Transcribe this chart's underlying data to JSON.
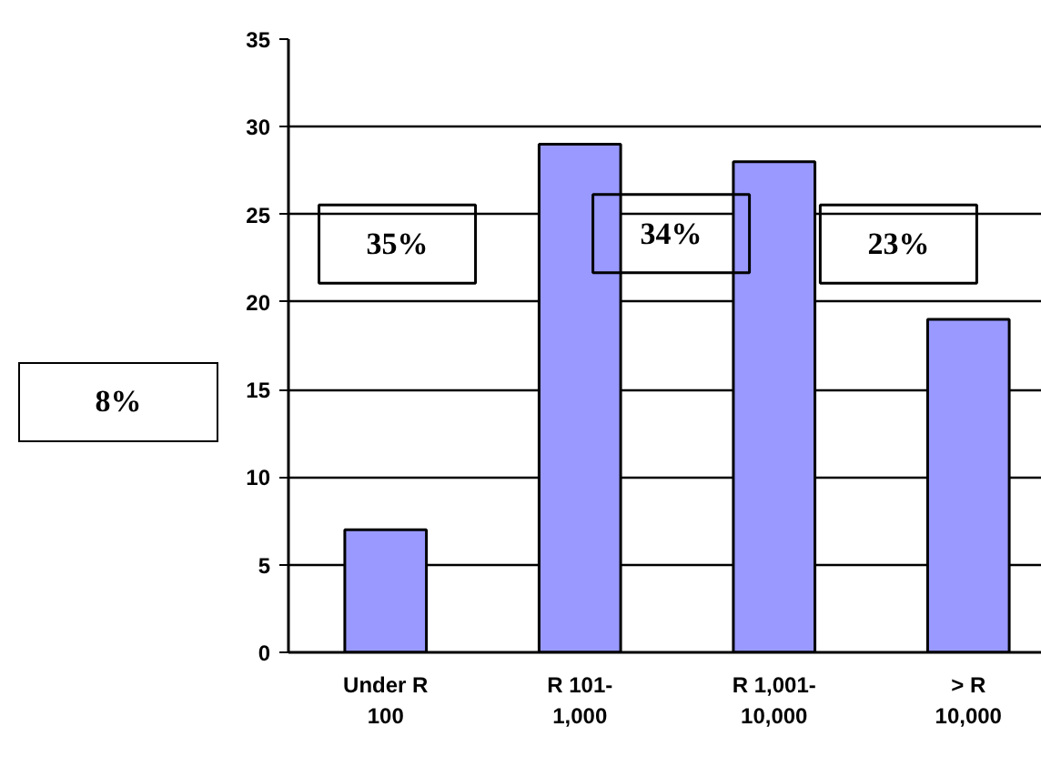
{
  "chart_data": {
    "type": "bar",
    "categories": [
      "Under R\n100",
      "R 101-\n1,000",
      "R 1,001-\n10,000",
      "> R\n10,000"
    ],
    "values": [
      7,
      29,
      28,
      19
    ],
    "color": "#9999ff",
    "ylim": [
      0,
      35
    ],
    "yticks": [
      0,
      5,
      10,
      15,
      20,
      25,
      30,
      35
    ],
    "grid": "y",
    "annotations": [
      "8%",
      "35%",
      "34%",
      "23%"
    ]
  }
}
